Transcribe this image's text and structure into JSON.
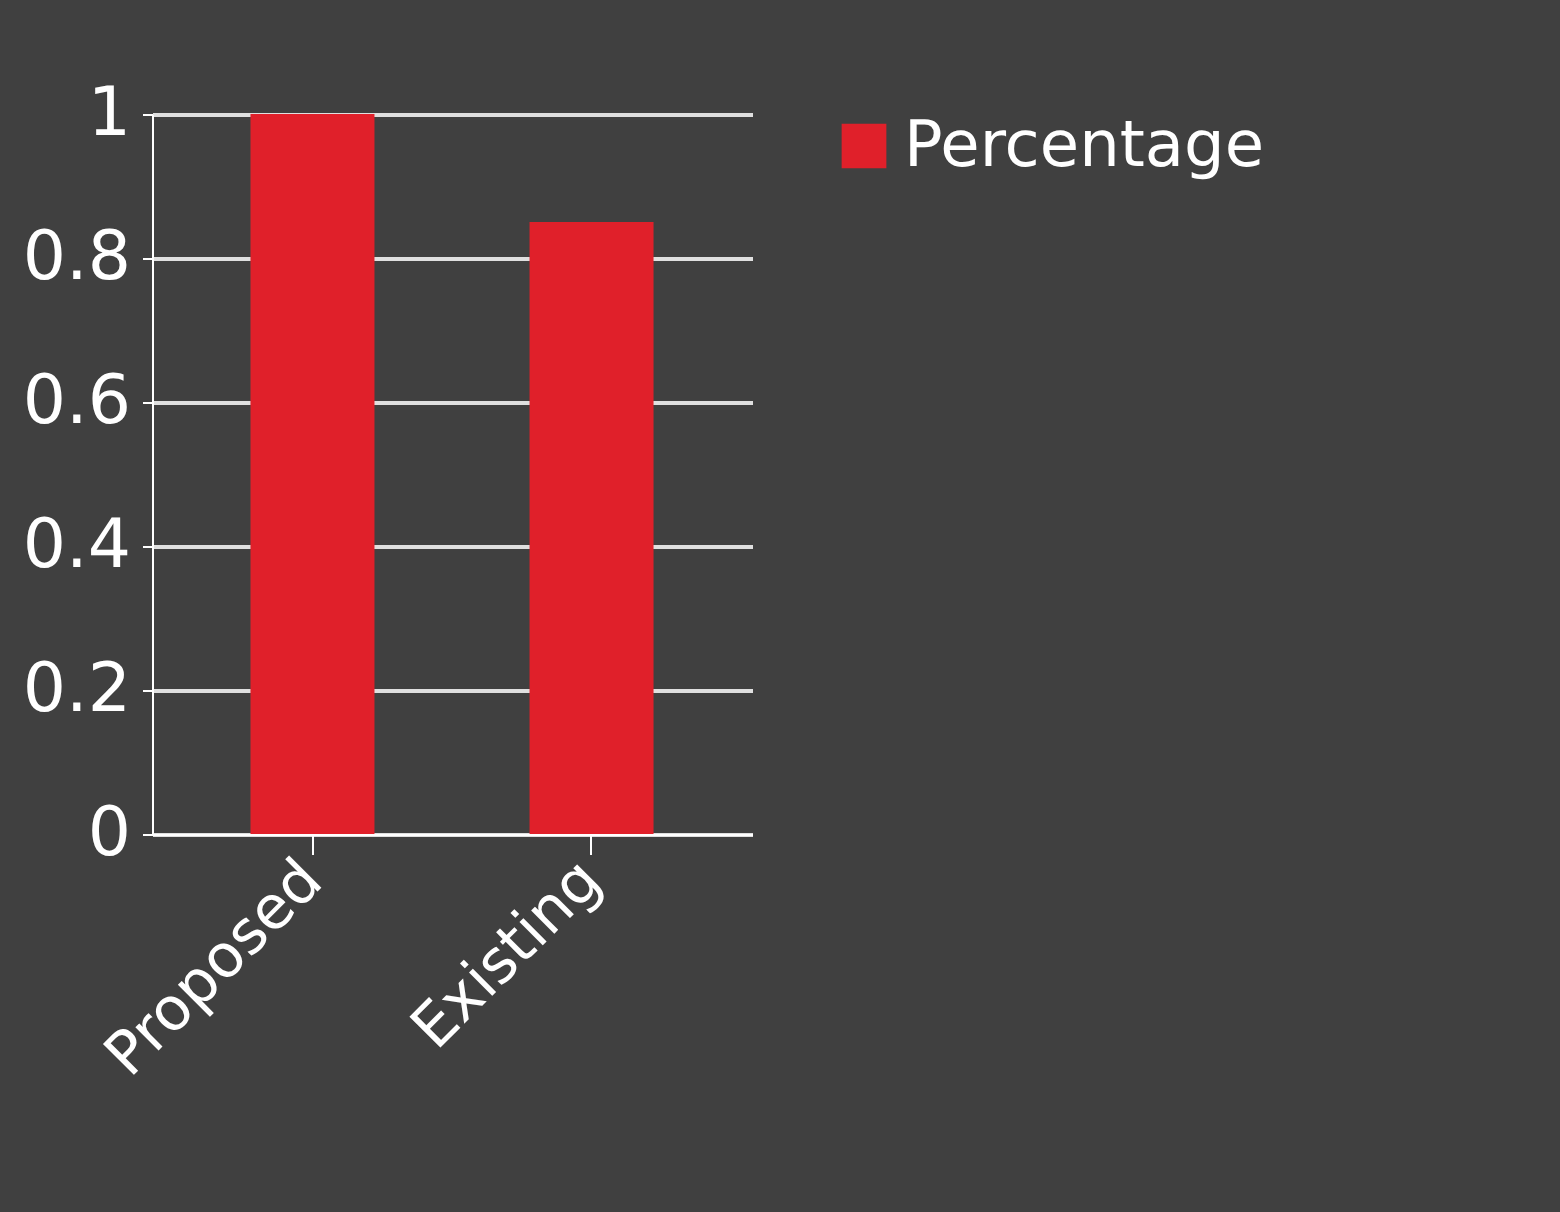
{
  "chart_data": {
    "type": "bar",
    "categories": [
      "Proposed",
      "Existing"
    ],
    "series": [
      {
        "name": "Percentage",
        "color": "#e0202a",
        "values": [
          1.0,
          0.85
        ]
      }
    ],
    "ylim": [
      0,
      1
    ],
    "yticks": [
      0,
      0.2,
      0.4,
      0.6,
      0.8,
      1
    ],
    "grid": "y",
    "legend": "right"
  }
}
